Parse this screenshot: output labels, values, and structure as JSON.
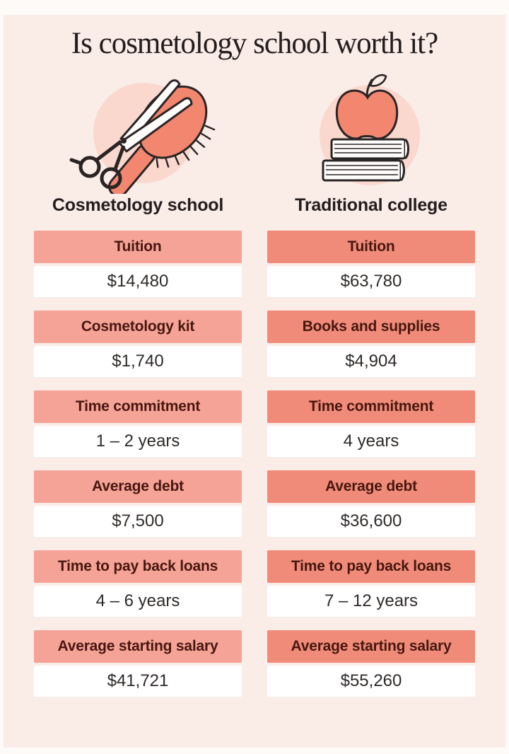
{
  "title": "Is cosmetology school worth it?",
  "colors": {
    "frame_bg": "#fdfaf8",
    "panel_bg": "#faece7",
    "icon_circle_bg": "#fad8ce",
    "icon_accent": "#f2866e",
    "outline": "#2a2425",
    "label_bg_left": "#f5a396",
    "label_bg_right": "#f08b79",
    "label_text": "#471710",
    "value_bg": "#ffffff",
    "value_text": "#2e2a28",
    "title_text": "#241d1e"
  },
  "columns": [
    {
      "name": "Cosmetology school",
      "icon": "scissors-and-hairbrush-icon",
      "label_bg": "#f5a396",
      "rows": [
        {
          "label": "Tuition",
          "value": "$14,480"
        },
        {
          "label": "Cosmetology kit",
          "value": "$1,740"
        },
        {
          "label": "Time commitment",
          "value": "1 – 2 years"
        },
        {
          "label": "Average debt",
          "value": "$7,500"
        },
        {
          "label": "Time to pay back loans",
          "value": "4 – 6 years"
        },
        {
          "label": "Average starting salary",
          "value": "$41,721"
        }
      ]
    },
    {
      "name": "Traditional college",
      "icon": "apple-on-books-icon",
      "label_bg": "#f08b79",
      "rows": [
        {
          "label": "Tuition",
          "value": "$63,780"
        },
        {
          "label": "Books and supplies",
          "value": "$4,904"
        },
        {
          "label": "Time commitment",
          "value": "4 years"
        },
        {
          "label": "Average debt",
          "value": "$36,600"
        },
        {
          "label": "Time to pay back loans",
          "value": "7 – 12 years"
        },
        {
          "label": "Average starting salary",
          "value": "$55,260"
        }
      ]
    }
  ],
  "chart_data": {
    "type": "table",
    "title": "Is cosmetology school worth it?",
    "series": [
      {
        "name": "Cosmetology school",
        "rows": [
          [
            "Tuition",
            "$14,480"
          ],
          [
            "Cosmetology kit",
            "$1,740"
          ],
          [
            "Time commitment",
            "1 – 2 years"
          ],
          [
            "Average debt",
            "$7,500"
          ],
          [
            "Time to pay back loans",
            "4 – 6 years"
          ],
          [
            "Average starting salary",
            "$41,721"
          ]
        ],
        "numeric": {
          "tuition_usd": 14480,
          "kit_usd": 1740,
          "time_years": [
            1,
            2
          ],
          "avg_debt_usd": 7500,
          "payback_years": [
            4,
            6
          ],
          "avg_starting_salary_usd": 41721
        }
      },
      {
        "name": "Traditional college",
        "rows": [
          [
            "Tuition",
            "$63,780"
          ],
          [
            "Books and supplies",
            "$4,904"
          ],
          [
            "Time commitment",
            "4 years"
          ],
          [
            "Average debt",
            "$36,600"
          ],
          [
            "Time to pay back loans",
            "7 – 12 years"
          ],
          [
            "Average starting salary",
            "$55,260"
          ]
        ],
        "numeric": {
          "tuition_usd": 63780,
          "books_supplies_usd": 4904,
          "time_years": [
            4,
            4
          ],
          "avg_debt_usd": 36600,
          "payback_years": [
            7,
            12
          ],
          "avg_starting_salary_usd": 55260
        }
      }
    ]
  }
}
